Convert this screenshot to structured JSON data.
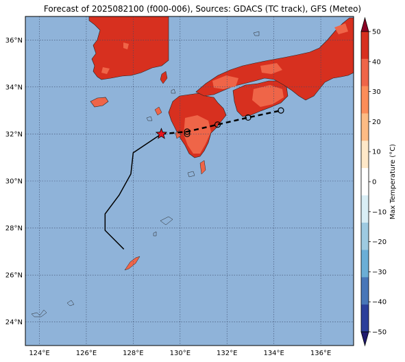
{
  "title": "Forecast of 2025082100 (f000-006), Sources: GDACS (TC track), GFS (Meteo)",
  "map": {
    "lon_range": [
      123.4,
      137.4
    ],
    "lat_range": [
      23.0,
      37.0
    ],
    "lon_ticks": [
      {
        "value": 124,
        "label": "124°E"
      },
      {
        "value": 126,
        "label": "126°E"
      },
      {
        "value": 128,
        "label": "128°E"
      },
      {
        "value": 130,
        "label": "130°E"
      },
      {
        "value": 132,
        "label": "132°E"
      },
      {
        "value": 134,
        "label": "134°E"
      },
      {
        "value": 136,
        "label": "136°E"
      }
    ],
    "lat_ticks": [
      {
        "value": 24,
        "label": "24°N"
      },
      {
        "value": 26,
        "label": "26°N"
      },
      {
        "value": 28,
        "label": "28°N"
      },
      {
        "value": 30,
        "label": "30°N"
      },
      {
        "value": 32,
        "label": "32°N"
      },
      {
        "value": 34,
        "label": "34°N"
      },
      {
        "value": 36,
        "label": "36°N"
      }
    ],
    "ocean_color": "#8fb3d9",
    "grid": true
  },
  "colorbar": {
    "label": "Max Temperature (°C)",
    "ticks": [
      "50",
      "40",
      "30",
      "20",
      "10",
      "0",
      "−10",
      "−20",
      "−30",
      "−40",
      "−50"
    ],
    "colors": [
      "#8b0024",
      "#d7301f",
      "#ef6548",
      "#fc8d59",
      "#fdbb84",
      "#fee8c8",
      "#ffffff",
      "#d9eef5",
      "#9ecae1",
      "#6baed6",
      "#4876b8",
      "#2b3f9b",
      "#1f1a6e"
    ]
  },
  "land_colors": {
    "hot": "#d7301f",
    "warm": "#ef6548"
  },
  "track": {
    "past": [
      [
        127.6,
        27.1
      ],
      [
        126.8,
        27.9
      ],
      [
        126.8,
        28.6
      ],
      [
        127.4,
        29.4
      ],
      [
        127.9,
        30.3
      ],
      [
        128.0,
        31.2
      ],
      [
        129.2,
        32.0
      ]
    ],
    "current": [
      129.2,
      32.0
    ],
    "forecast": [
      [
        129.2,
        32.0
      ],
      [
        130.3,
        32.1
      ],
      [
        131.6,
        32.4
      ],
      [
        132.9,
        32.7
      ],
      [
        134.3,
        33.0
      ]
    ],
    "forecast_points": [
      [
        130.3,
        32.1
      ],
      [
        130.3,
        32.0
      ],
      [
        131.6,
        32.4
      ],
      [
        132.9,
        32.7
      ],
      [
        134.3,
        33.0
      ]
    ]
  }
}
